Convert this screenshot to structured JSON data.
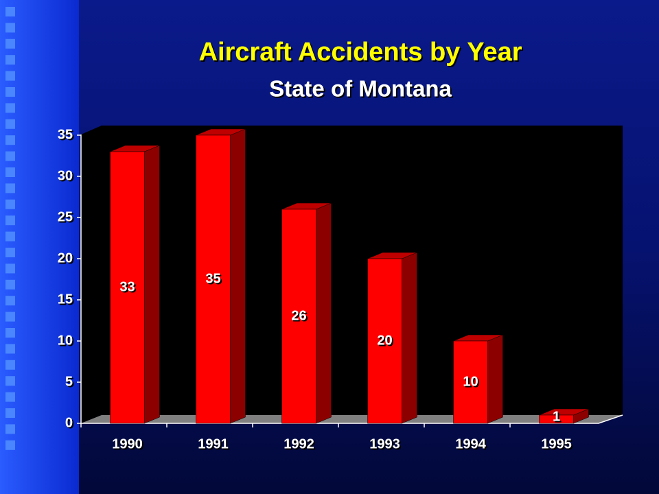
{
  "chart_data": {
    "type": "bar",
    "title": "Aircraft Accidents by Year",
    "subtitle": "State of Montana",
    "categories": [
      "1990",
      "1991",
      "1992",
      "1993",
      "1994",
      "1995"
    ],
    "values": [
      33,
      35,
      26,
      20,
      10,
      1
    ],
    "color": "#ff0000",
    "ylim": [
      0,
      35
    ],
    "yticks": [
      0,
      5,
      10,
      15,
      20,
      25,
      30,
      35
    ],
    "grid": false
  }
}
